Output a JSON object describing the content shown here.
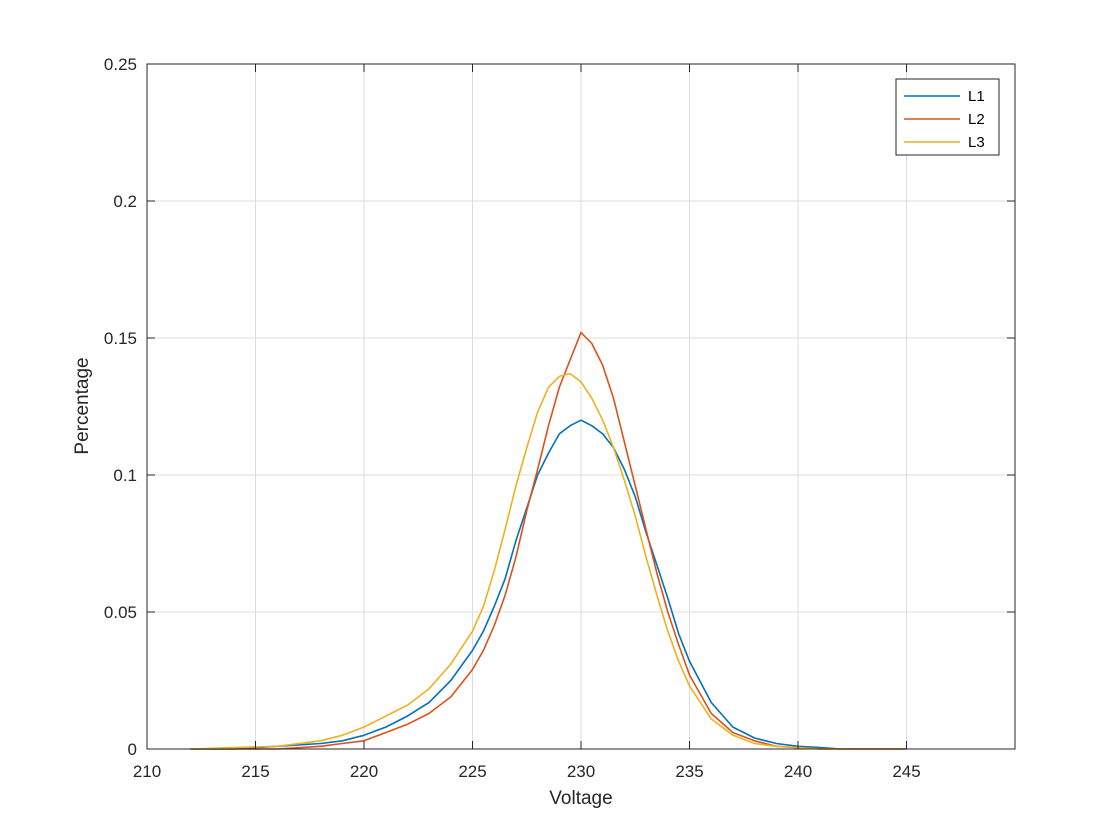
{
  "chart_data": {
    "type": "line",
    "xlabel": "Voltage",
    "ylabel": "Percentage",
    "xlim": [
      210,
      250
    ],
    "ylim": [
      0,
      0.25
    ],
    "x_ticks": [
      "210",
      "215",
      "220",
      "225",
      "230",
      "235",
      "240",
      "245"
    ],
    "y_ticks": [
      "0",
      "0.05",
      "0.1",
      "0.15",
      "0.2",
      "0.25"
    ],
    "grid": true,
    "legend_position": "top-right",
    "x": [
      212,
      214,
      216,
      218,
      219,
      220,
      221,
      222,
      223,
      224,
      225,
      225.5,
      226,
      226.5,
      227,
      227.5,
      228,
      228.5,
      229,
      229.5,
      230,
      230.5,
      231,
      231.5,
      232,
      232.5,
      233,
      233.5,
      234,
      234.5,
      235,
      236,
      237,
      238,
      239,
      240,
      241,
      242,
      243,
      245
    ],
    "series": [
      {
        "name": "L1",
        "color": "#0072BD",
        "values": [
          0,
          0,
          0.001,
          0.002,
          0.003,
          0.005,
          0.008,
          0.012,
          0.017,
          0.025,
          0.036,
          0.043,
          0.052,
          0.062,
          0.076,
          0.088,
          0.1,
          0.108,
          0.115,
          0.118,
          0.12,
          0.118,
          0.115,
          0.11,
          0.102,
          0.092,
          0.079,
          0.067,
          0.055,
          0.042,
          0.032,
          0.017,
          0.008,
          0.004,
          0.002,
          0.001,
          0.0005,
          0,
          0,
          0
        ]
      },
      {
        "name": "L2",
        "color": "#D95319",
        "values": [
          0,
          0,
          0,
          0.001,
          0.002,
          0.003,
          0.006,
          0.009,
          0.013,
          0.019,
          0.029,
          0.036,
          0.045,
          0.056,
          0.07,
          0.087,
          0.102,
          0.118,
          0.132,
          0.142,
          0.152,
          0.148,
          0.14,
          0.128,
          0.112,
          0.096,
          0.08,
          0.064,
          0.05,
          0.038,
          0.027,
          0.013,
          0.006,
          0.003,
          0.001,
          0.0005,
          0,
          0,
          0,
          0
        ]
      },
      {
        "name": "L3",
        "color": "#EDB120",
        "values": [
          0,
          0.0005,
          0.001,
          0.003,
          0.005,
          0.008,
          0.012,
          0.016,
          0.022,
          0.031,
          0.043,
          0.052,
          0.065,
          0.08,
          0.096,
          0.11,
          0.123,
          0.132,
          0.136,
          0.137,
          0.134,
          0.128,
          0.12,
          0.11,
          0.098,
          0.085,
          0.07,
          0.056,
          0.043,
          0.032,
          0.023,
          0.011,
          0.005,
          0.002,
          0.001,
          0.0005,
          0,
          0,
          0,
          0
        ]
      }
    ]
  }
}
